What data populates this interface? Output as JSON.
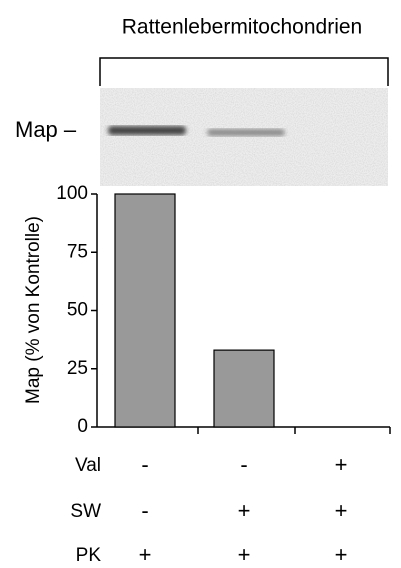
{
  "chart_data": {
    "type": "bar",
    "title": "Rattenlebermitochondrien",
    "gel_label": "Map –",
    "ylabel": "Map (% von Kontrolle)",
    "categories": [
      null,
      null,
      null
    ],
    "values": [
      100,
      33,
      0
    ],
    "color": "#999999",
    "ylim": [
      0,
      100
    ],
    "yticks": [
      0,
      25,
      50,
      75,
      100
    ],
    "conditions": [
      {
        "label": "Val",
        "values": [
          "-",
          "-",
          "+"
        ]
      },
      {
        "label": "SW",
        "values": [
          "-",
          "+",
          "+"
        ]
      },
      {
        "label": "PK",
        "values": [
          "+",
          "+",
          "+"
        ]
      }
    ]
  }
}
